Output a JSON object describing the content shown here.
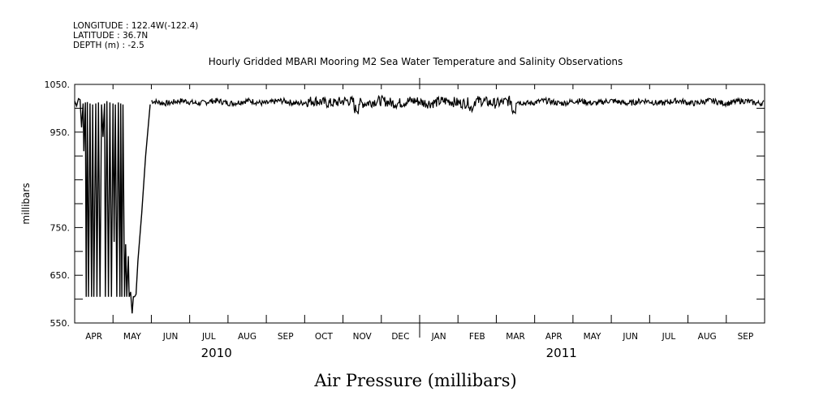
{
  "header": {
    "longitude": "LONGITUDE : 122.4W(-122.4)",
    "latitude": "LATITUDE : 36.7N",
    "depth": "DEPTH (m) : -2.5"
  },
  "chart_data": {
    "type": "line",
    "title": "Hourly Gridded MBARI Mooring M2 Sea Water Temperature and Salinity Observations",
    "xlabel": "Air Pressure (millibars)",
    "ylabel": "millibars",
    "ylim": [
      550,
      1050
    ],
    "yticks": [
      550,
      650,
      750,
      950,
      1050
    ],
    "ytick_labels": [
      "550.",
      "650.",
      "750.",
      "950.",
      "1050."
    ],
    "x_months": [
      "APR",
      "MAY",
      "JUN",
      "JUL",
      "AUG",
      "SEP",
      "OCT",
      "NOV",
      "DEC",
      "JAN",
      "FEB",
      "MAR",
      "APR",
      "MAY",
      "JUN",
      "JUL",
      "AUG",
      "SEP"
    ],
    "year_labels": [
      {
        "label": "2010",
        "after_month_index": 3.7
      },
      {
        "label": "2011",
        "after_month_index": 12.7
      }
    ],
    "x_range_months": [
      0,
      18
    ],
    "grid": false,
    "series": [
      {
        "x": [
          0.0,
          0.05,
          0.1,
          0.14,
          0.18,
          0.22,
          0.24,
          0.28,
          0.3,
          0.33,
          0.36,
          0.4,
          0.44,
          0.47,
          0.5,
          0.55,
          0.58,
          0.62,
          0.66,
          0.7,
          0.74,
          0.78,
          0.8,
          0.84,
          0.88,
          0.92,
          0.96,
          1.0,
          1.03,
          1.06,
          1.1,
          1.14,
          1.18,
          1.2,
          1.23,
          1.26,
          1.3,
          1.33,
          1.36,
          1.4,
          1.42,
          1.46,
          1.5,
          1.53,
          1.56,
          1.6,
          1.65,
          1.75,
          1.85,
          1.97
        ],
        "y": [
          1015,
          1005,
          1020,
          1018,
          960,
          1010,
          910,
          1012,
          605,
          1013,
          605,
          1010,
          605,
          1008,
          605,
          1010,
          605,
          1012,
          605,
          1008,
          940,
          1010,
          605,
          1015,
          605,
          1012,
          605,
          1010,
          720,
          1008,
          605,
          1012,
          605,
          1010,
          605,
          1008,
          605,
          715,
          605,
          690,
          605,
          615,
          570,
          605,
          605,
          610,
          680,
          780,
          900,
          1008
        ]
      },
      {
        "comment_free": true,
        "x_start": 2.0,
        "x_end": 17.98,
        "base": 1013
      }
    ]
  }
}
